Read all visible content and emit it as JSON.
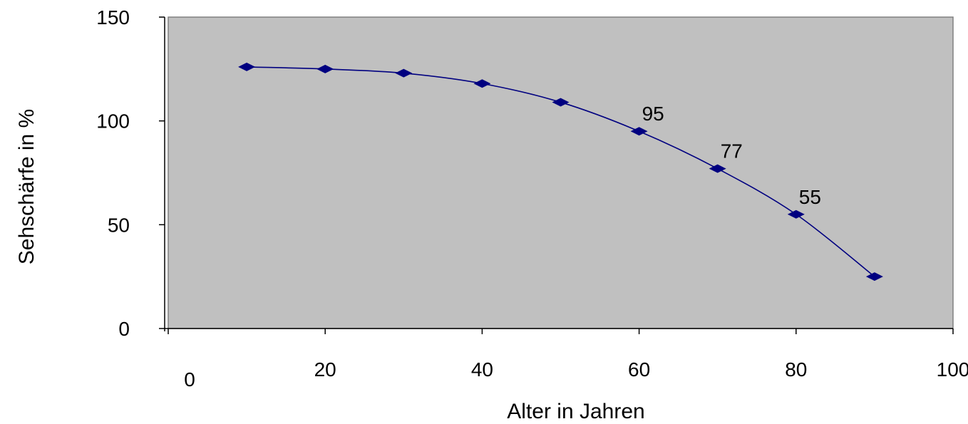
{
  "chart_data": {
    "type": "line",
    "title": "",
    "xlabel": "Alter in Jahren",
    "ylabel": "Sehschärfe in %",
    "xlim": [
      0,
      100
    ],
    "ylim": [
      0,
      150
    ],
    "x_ticks": [
      0,
      20,
      40,
      60,
      80,
      100
    ],
    "y_ticks": [
      0,
      50,
      100,
      150
    ],
    "grid": false,
    "legend": "none",
    "series": [
      {
        "x": [
          10,
          20,
          30,
          40,
          50,
          60,
          70,
          80,
          90
        ],
        "values": [
          126,
          125,
          123,
          118,
          109,
          95,
          77,
          55,
          25
        ]
      }
    ],
    "data_labels": [
      {
        "x": 60,
        "y": 95,
        "text": "95"
      },
      {
        "x": 70,
        "y": 77,
        "text": "77"
      },
      {
        "x": 80,
        "y": 55,
        "text": "55"
      }
    ],
    "colors": {
      "plot_background": "#c0c0c0",
      "series_line": "#000080",
      "axis": "#000000"
    }
  }
}
